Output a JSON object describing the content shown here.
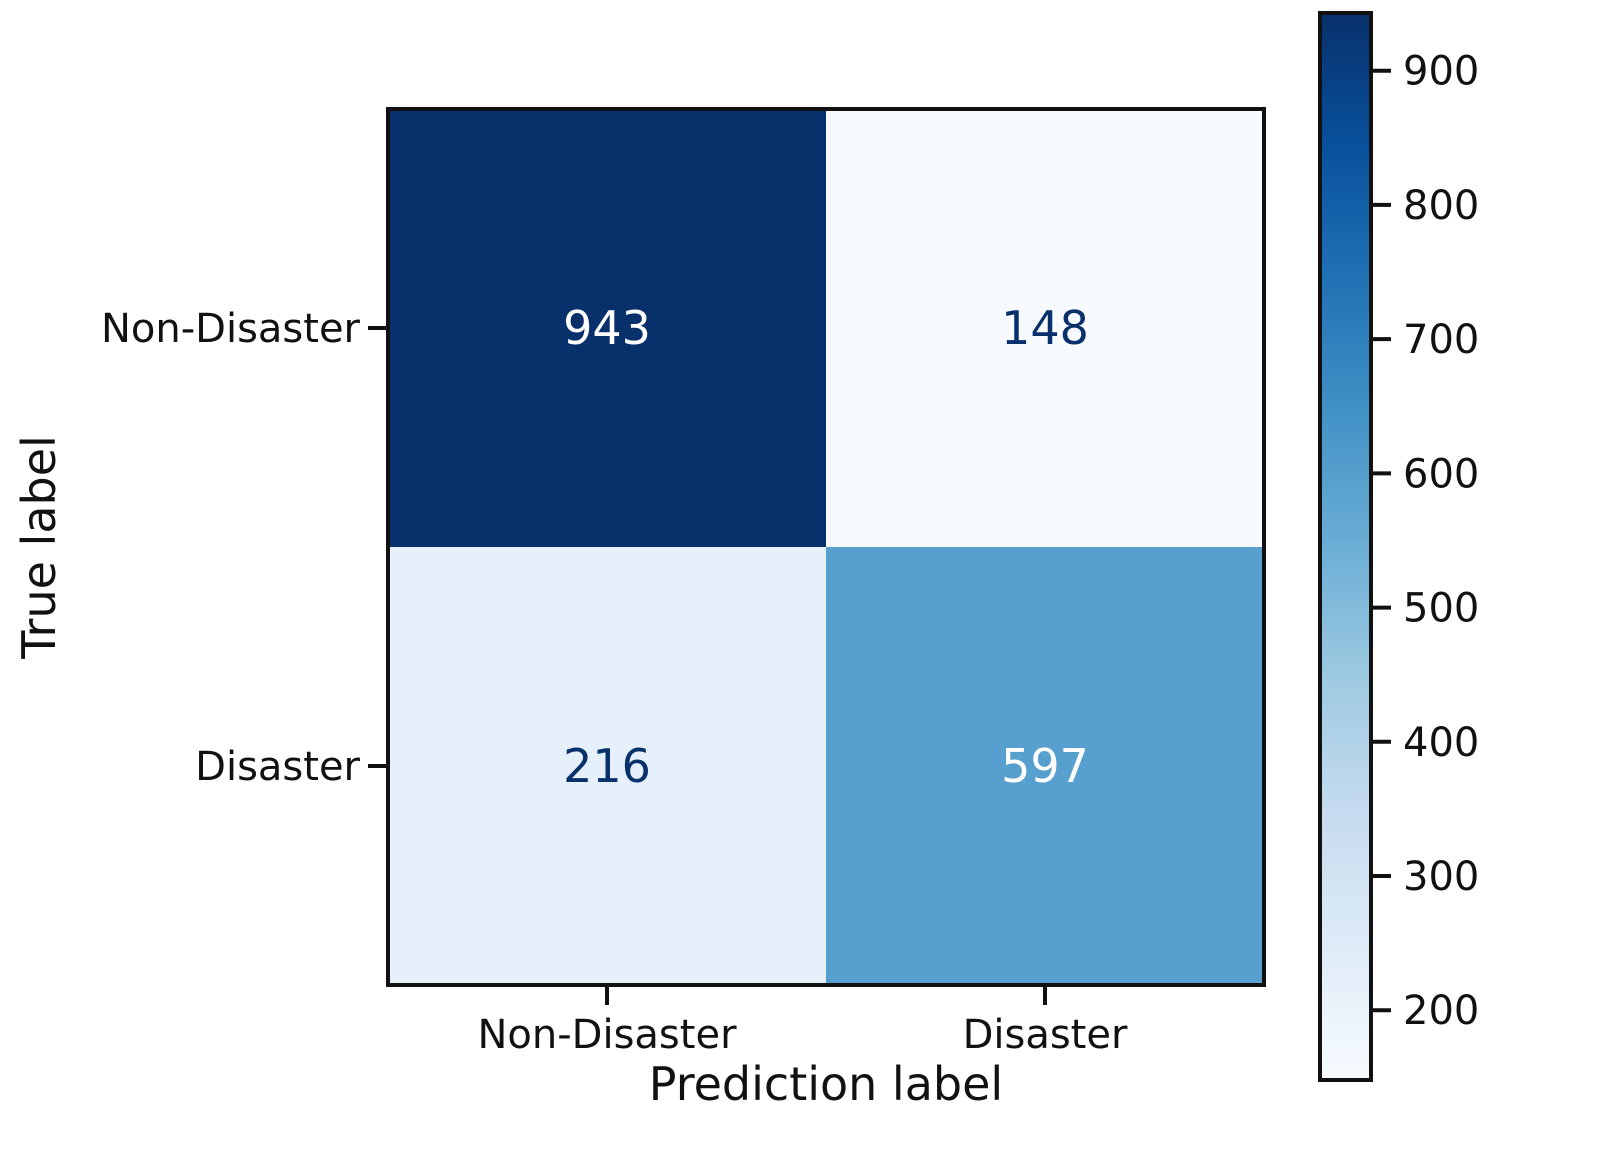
{
  "chart_data": {
    "type": "heatmap",
    "title": "",
    "xlabel": "Prediction label",
    "ylabel": "True label",
    "x_categories": [
      "Non-Disaster",
      "Disaster"
    ],
    "y_categories": [
      "Non-Disaster",
      "Disaster"
    ],
    "values": [
      [
        943,
        148
      ],
      [
        216,
        597
      ]
    ],
    "colormap": "Blues",
    "colorbar": {
      "range": [
        148,
        943
      ],
      "ticks": [
        200,
        300,
        400,
        500,
        600,
        700,
        800,
        900
      ]
    },
    "colors": {
      "dark_text": "#08306b",
      "light_text": "#ffffff",
      "axis": "#111111"
    }
  }
}
